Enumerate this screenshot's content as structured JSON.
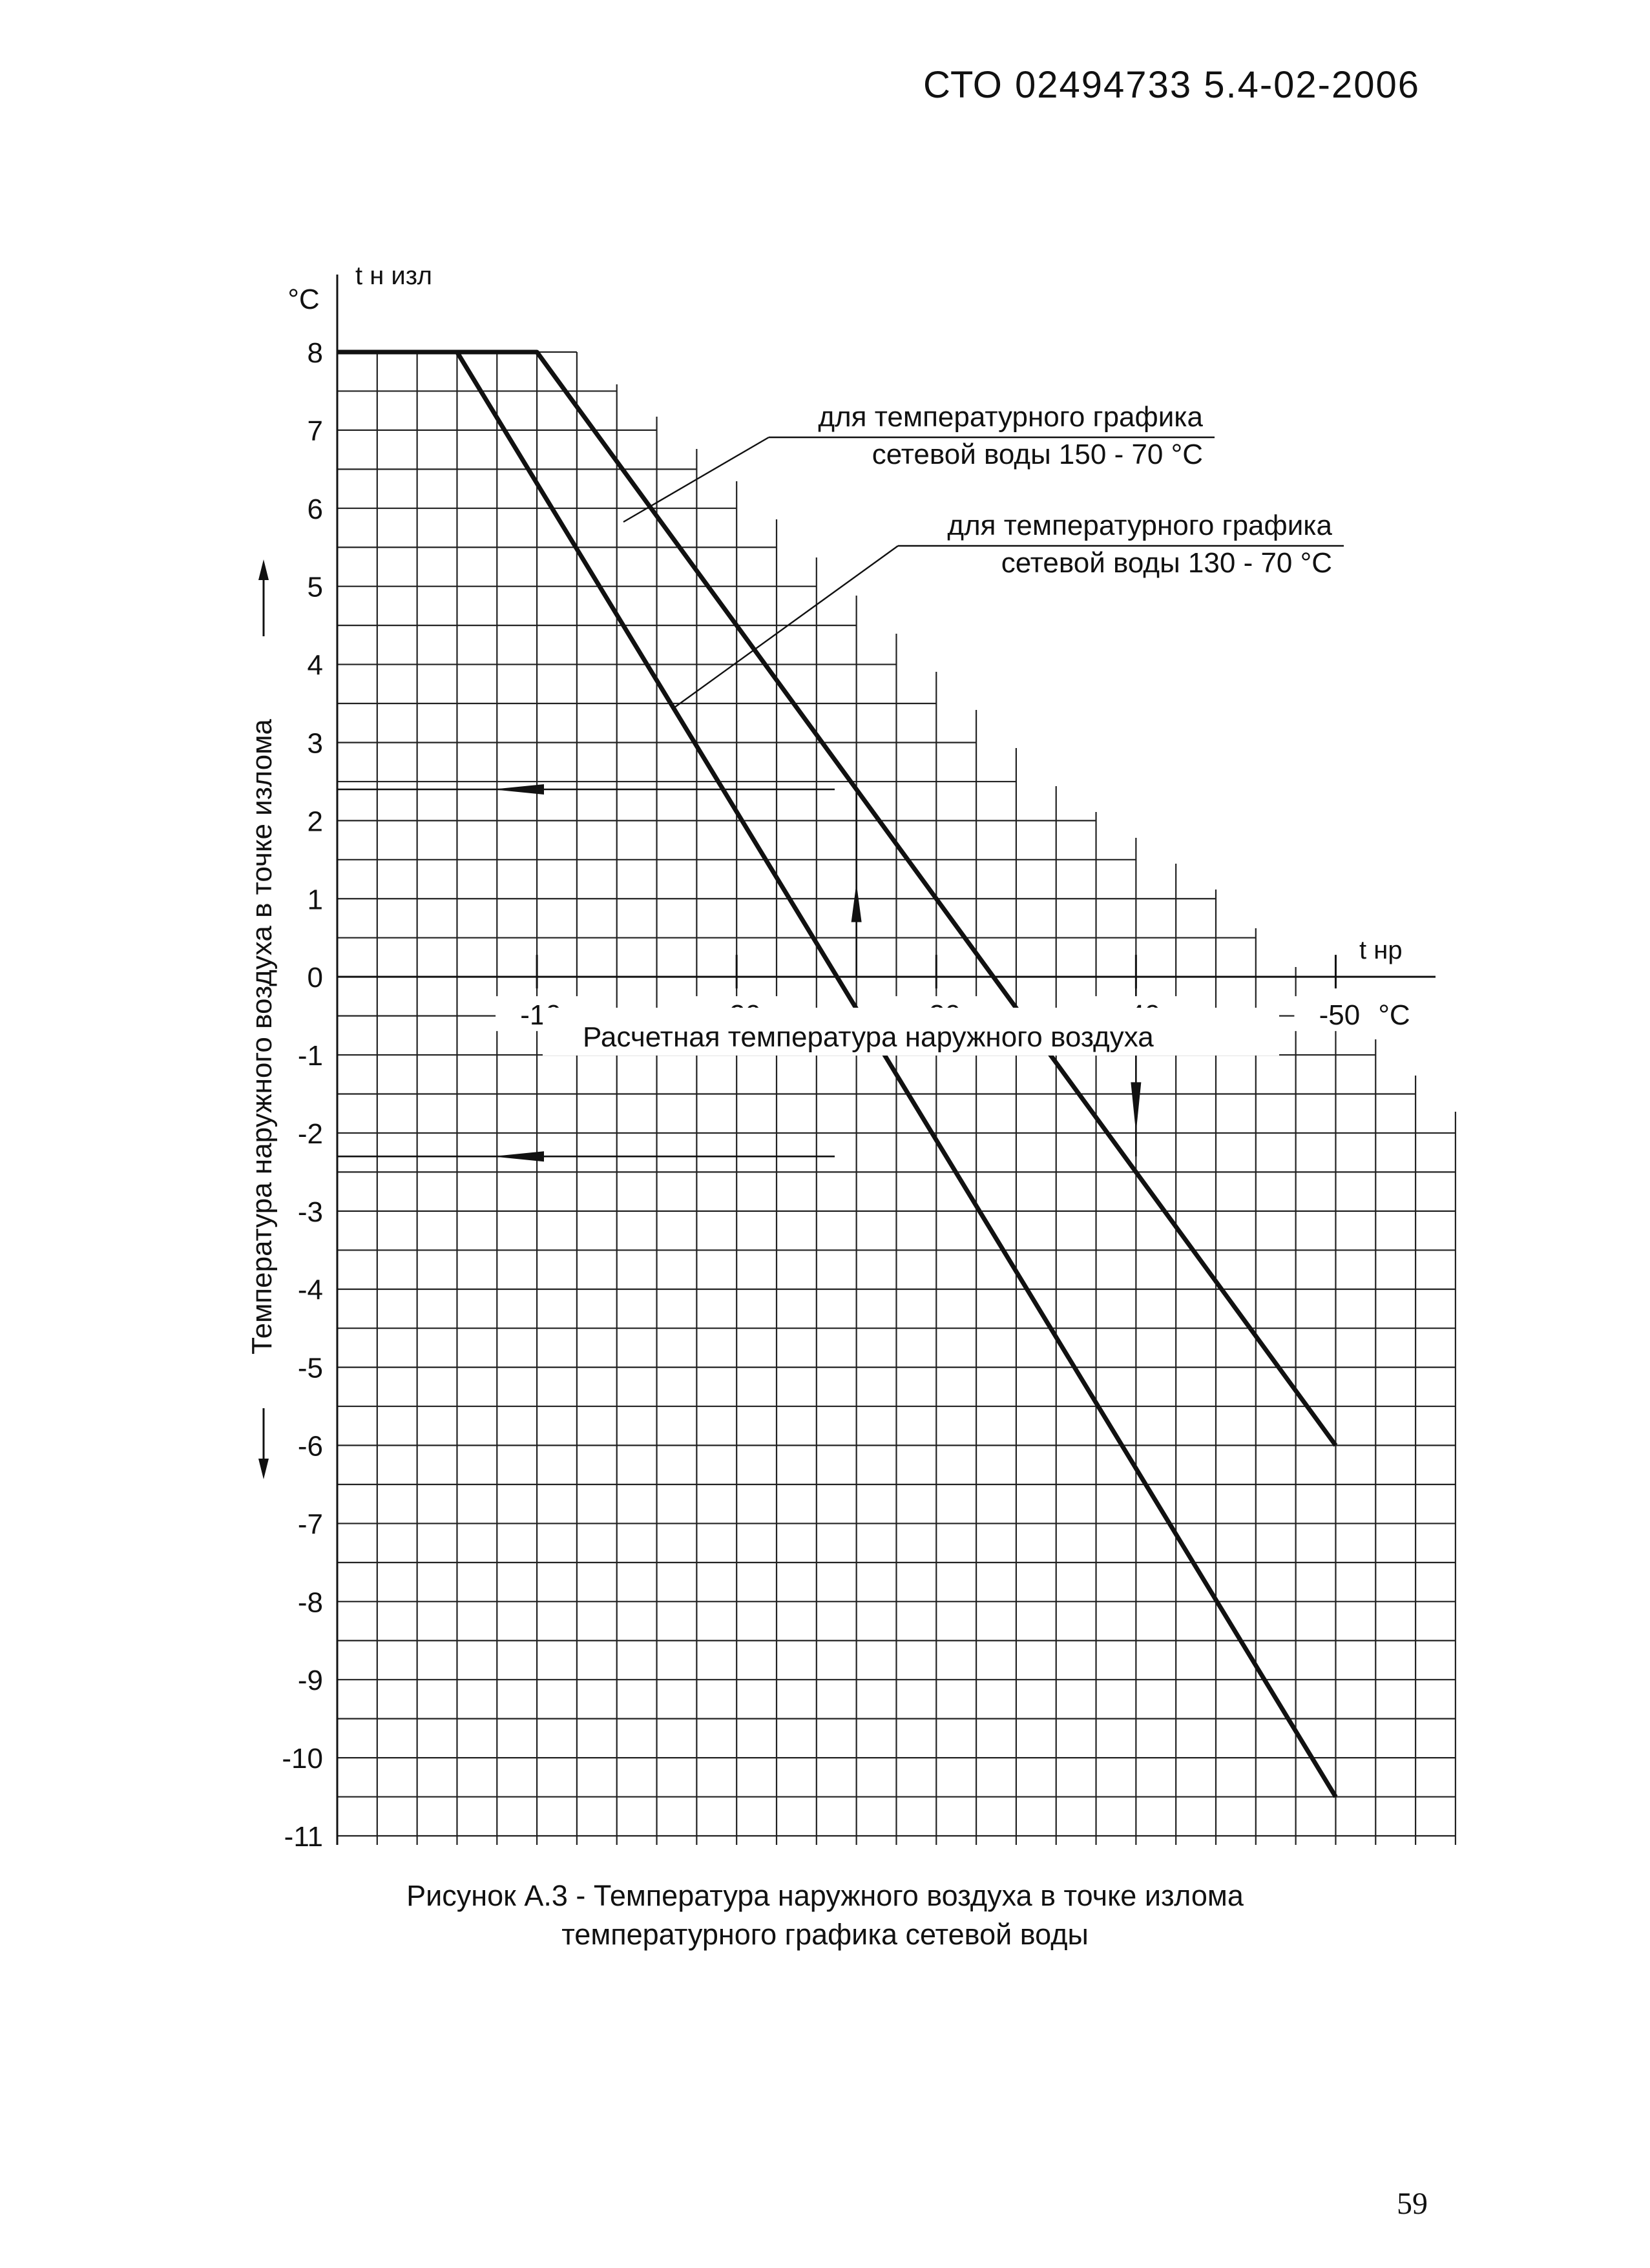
{
  "header": {
    "doc_code": "СТО 02494733 5.4-02-2006"
  },
  "chart_data": {
    "type": "line",
    "y_corner_unit": "°C",
    "y_symbol": "t н изл",
    "x_symbol": "t нр",
    "x_unit": "°C",
    "xlabel": "Расчетная температура наружного воздуха",
    "ylabel": "Температура наружного воздуха в точке излома",
    "xlim": [
      0,
      -55
    ],
    "ylim": [
      -11,
      8
    ],
    "x_ticks": [
      {
        "value": -10,
        "label": "-10"
      },
      {
        "value": -20,
        "label": "-20"
      },
      {
        "value": -30,
        "label": "-30"
      },
      {
        "value": -40,
        "label": "-40"
      },
      {
        "value": -50,
        "label": "-50"
      }
    ],
    "y_ticks": [
      {
        "value": 8,
        "label": "8"
      },
      {
        "value": 7,
        "label": "7"
      },
      {
        "value": 6,
        "label": "6"
      },
      {
        "value": 5,
        "label": "5"
      },
      {
        "value": 4,
        "label": "4"
      },
      {
        "value": 3,
        "label": "3"
      },
      {
        "value": 2,
        "label": "2"
      },
      {
        "value": 1,
        "label": "1"
      },
      {
        "value": 0,
        "label": "0"
      },
      {
        "value": -1,
        "label": "-1"
      },
      {
        "value": -2,
        "label": "-2"
      },
      {
        "value": -3,
        "label": "-3"
      },
      {
        "value": -4,
        "label": "-4"
      },
      {
        "value": -5,
        "label": "-5"
      },
      {
        "value": -6,
        "label": "-6"
      },
      {
        "value": -7,
        "label": "-7"
      },
      {
        "value": -8,
        "label": "-8"
      },
      {
        "value": -9,
        "label": "-9"
      },
      {
        "value": -10,
        "label": "-10"
      },
      {
        "value": -11,
        "label": "-11"
      }
    ],
    "grid": true,
    "series": [
      {
        "id": "s150",
        "x": [
          0,
          -10,
          -50
        ],
        "y": [
          8,
          8,
          -6
        ]
      },
      {
        "id": "s130",
        "x": [
          0,
          -6,
          -50
        ],
        "y": [
          8,
          8,
          -10.5
        ]
      }
    ],
    "annotations": [
      {
        "id": "label150",
        "lines": [
          "для температурного графика",
          "сетевой воды 150 - 70 °C"
        ],
        "points_to_series": "s150"
      },
      {
        "id": "label130",
        "lines": [
          "для температурного графика",
          "сетевой воды 130 - 70 °C"
        ],
        "points_to_series": "s130"
      }
    ],
    "example_arrows": [
      {
        "id": "h1",
        "direction": "left",
        "y": 2.4
      },
      {
        "id": "h2",
        "direction": "left",
        "y": -2.3
      },
      {
        "id": "v1",
        "direction": "up",
        "x": -26
      },
      {
        "id": "v2",
        "direction": "down",
        "x": -40
      }
    ]
  },
  "caption": {
    "line1": "Рисунок А.3 - Температура наружного воздуха в точке излома",
    "line2": "температурного графика сетевой воды"
  },
  "page_number": "59"
}
